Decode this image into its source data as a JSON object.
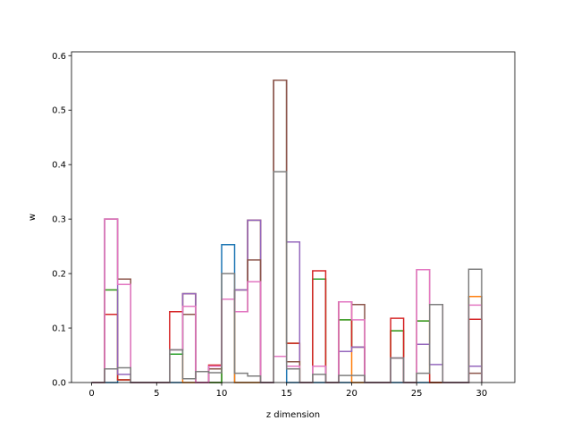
{
  "chart_data": {
    "type": "bar",
    "style": "stacked step histogram (unfilled outlines), bin width 1",
    "xlabel": "z dimension",
    "ylabel": "w",
    "xlim": [
      -1.55,
      32.55
    ],
    "ylim": [
      0,
      0.607
    ],
    "xticks": [
      0,
      5,
      10,
      15,
      20,
      25,
      30
    ],
    "yticks": [
      0.0,
      0.1,
      0.2,
      0.3,
      0.4,
      0.5,
      0.6
    ],
    "colors": [
      "#1f77b4",
      "#ff7f0e",
      "#2ca02c",
      "#d62728",
      "#9467bd",
      "#8c564b",
      "#e377c2",
      "#7f7f7f"
    ],
    "bins": [
      0,
      1,
      2,
      3,
      4,
      5,
      6,
      7,
      8,
      9,
      10,
      11,
      12,
      13,
      14,
      15,
      16,
      17,
      18,
      19,
      20,
      21,
      22,
      23,
      24,
      25,
      26,
      27,
      28,
      29,
      30
    ],
    "bin_width": 1,
    "series_cumulative": [
      [
        0,
        0,
        0.005,
        0,
        0,
        0,
        0,
        0,
        0,
        0,
        0.253,
        0,
        0,
        0,
        0.555,
        0,
        0,
        0,
        0,
        0,
        0,
        0,
        0,
        0,
        0,
        0,
        0,
        0,
        0,
        0.158
      ],
      [
        0,
        0.17,
        0.005,
        0,
        0,
        0,
        0.052,
        0,
        0,
        0,
        0.153,
        0,
        0,
        0,
        0.555,
        0.072,
        0,
        0.19,
        0,
        0.115,
        0,
        0,
        0,
        0.095,
        0,
        0.113,
        0,
        0,
        0,
        0.158
      ],
      [
        0,
        0.17,
        0.005,
        0,
        0,
        0,
        0.052,
        0.163,
        0,
        0,
        0.153,
        0.17,
        0.298,
        0,
        0.555,
        0.072,
        0,
        0.19,
        0,
        0.115,
        0.065,
        0,
        0,
        0.095,
        0,
        0.113,
        0,
        0,
        0,
        0.116
      ],
      [
        0,
        0.125,
        0.005,
        0,
        0,
        0,
        0.13,
        0.163,
        0,
        0.032,
        0.153,
        0.17,
        0.298,
        0,
        0.555,
        0.072,
        0,
        0.205,
        0,
        0.148,
        0.065,
        0,
        0,
        0.118,
        0,
        0.207,
        0,
        0,
        0,
        0.116
      ],
      [
        0,
        0.3,
        0.015,
        0,
        0,
        0,
        0.06,
        0.163,
        0,
        0.03,
        0.153,
        0.17,
        0.298,
        0,
        0.555,
        0.258,
        0,
        0.03,
        0,
        0.057,
        0.065,
        0,
        0,
        0.045,
        0,
        0.07,
        0.033,
        0,
        0,
        0.03
      ],
      [
        0,
        0.3,
        0.19,
        0,
        0,
        0,
        0.06,
        0.125,
        0,
        0.025,
        0.153,
        0.13,
        0.225,
        0,
        0.555,
        0.038,
        0,
        0.03,
        0,
        0.148,
        0.143,
        0,
        0,
        0.045,
        0,
        0.207,
        0.143,
        0,
        0,
        0.017
      ],
      [
        0,
        0.3,
        0.18,
        0,
        0,
        0,
        0.06,
        0.14,
        0,
        0.03,
        0.153,
        0.13,
        0.185,
        0,
        0.048,
        0.03,
        0,
        0.03,
        0,
        0.148,
        0.115,
        0,
        0,
        0.045,
        0,
        0.207,
        0.143,
        0,
        0,
        0.142
      ],
      [
        0,
        0.025,
        0.027,
        0,
        0,
        0,
        0.06,
        0.007,
        0.02,
        0.018,
        0.2,
        0.017,
        0.012,
        0,
        0.387,
        0.025,
        0,
        0.015,
        0,
        0.013,
        0.013,
        0,
        0,
        0.045,
        0,
        0.017,
        0.143,
        0,
        0,
        0.208
      ]
    ]
  }
}
